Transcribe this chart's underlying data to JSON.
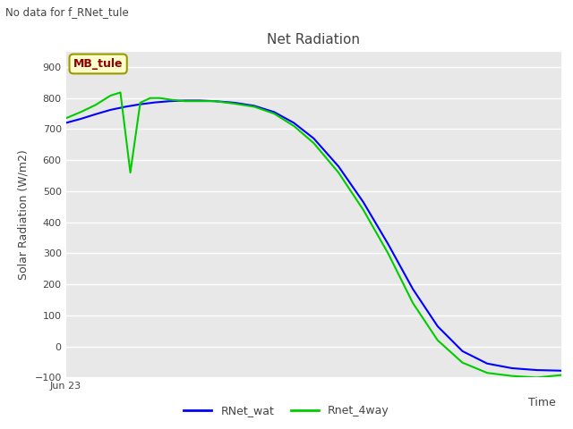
{
  "title": "Net Radiation",
  "ylabel": "Solar Radiation (W/m2)",
  "xlabel": "Time",
  "top_left_text": "No data for f_RNet_tule",
  "annotation_box_text": "MB_tule",
  "background_color": "#e8e8e8",
  "grid_color": "#ffffff",
  "legend_labels": [
    "RNet_wat",
    "Rnet_4way"
  ],
  "legend_colors": [
    "#0000ff",
    "#00cc00"
  ],
  "ylim": [
    -100,
    950
  ],
  "yticks": [
    -100,
    0,
    100,
    200,
    300,
    400,
    500,
    600,
    700,
    800,
    900
  ],
  "rnet_wat_x": [
    0,
    3,
    6,
    9,
    12,
    15,
    18,
    21,
    24,
    27,
    30,
    34,
    38,
    42,
    46,
    50,
    55,
    60,
    65,
    70,
    75,
    80,
    85,
    90,
    95,
    100
  ],
  "rnet_wat_y": [
    720,
    733,
    748,
    762,
    772,
    780,
    786,
    790,
    792,
    792,
    790,
    785,
    775,
    755,
    720,
    670,
    580,
    465,
    330,
    185,
    65,
    -15,
    -55,
    -70,
    -76,
    -78
  ],
  "rnet_4way_x": [
    0,
    3,
    6,
    9,
    11,
    13,
    15,
    17,
    19,
    21,
    24,
    27,
    30,
    34,
    38,
    42,
    46,
    50,
    55,
    60,
    65,
    70,
    75,
    80,
    85,
    90,
    95,
    100
  ],
  "rnet_4way_y": [
    735,
    755,
    778,
    808,
    818,
    560,
    785,
    800,
    800,
    795,
    790,
    790,
    790,
    782,
    772,
    750,
    710,
    655,
    560,
    440,
    300,
    140,
    20,
    -52,
    -85,
    -95,
    -100,
    -92
  ]
}
